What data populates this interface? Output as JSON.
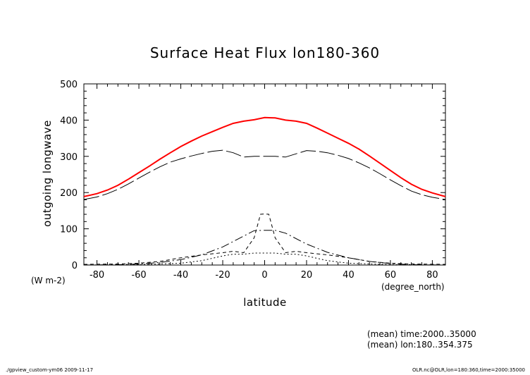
{
  "chart_data": {
    "type": "line",
    "title": "Surface Heat Flux lon180-360",
    "xlabel": "latitude",
    "ylabel": "outgoing longwave",
    "yunits": "(W m-2)",
    "xunits": "(degree_north)",
    "xlim": [
      -86.25,
      86.25
    ],
    "ylim": [
      0,
      500
    ],
    "xticks": [
      -80,
      -60,
      -40,
      -20,
      0,
      20,
      40,
      60,
      80
    ],
    "yticks": [
      0,
      100,
      200,
      300,
      400,
      500
    ],
    "grid": false,
    "series": [
      {
        "style": "solid",
        "color": "#ff0000",
        "x": [
          -86.25,
          -80,
          -75,
          -70,
          -65,
          -60,
          -55,
          -50,
          -45,
          -40,
          -35,
          -30,
          -25,
          -20,
          -15,
          -10,
          -5,
          0,
          5,
          10,
          15,
          20,
          25,
          30,
          35,
          40,
          45,
          50,
          55,
          60,
          65,
          70,
          75,
          80,
          86.25
        ],
        "y": [
          189,
          197,
          207,
          220,
          237,
          255,
          273,
          292,
          310,
          327,
          342,
          356,
          368,
          380,
          391,
          397,
          401,
          407,
          406,
          400,
          397,
          391,
          378,
          364,
          350,
          336,
          320,
          301,
          281,
          261,
          241,
          223,
          209,
          199,
          189
        ]
      },
      {
        "style": "long-dash",
        "color": "#000000",
        "x": [
          -86.25,
          -80,
          -75,
          -70,
          -65,
          -60,
          -55,
          -50,
          -45,
          -40,
          -35,
          -30,
          -25,
          -20,
          -15,
          -10,
          -5,
          0,
          5,
          10,
          15,
          20,
          25,
          30,
          35,
          40,
          45,
          50,
          55,
          60,
          65,
          70,
          75,
          80,
          86.25
        ],
        "y": [
          181,
          188,
          197,
          209,
          224,
          240,
          256,
          271,
          284,
          293,
          301,
          308,
          314,
          317,
          310,
          298,
          300,
          300,
          300,
          298,
          307,
          316,
          314,
          310,
          303,
          294,
          282,
          268,
          252,
          235,
          219,
          204,
          194,
          187,
          181
        ]
      },
      {
        "style": "short-dash",
        "color": "#000000",
        "x": [
          -86.25,
          -70,
          -60,
          -50,
          -40,
          -30,
          -20,
          -15,
          -10,
          -5,
          -2,
          0,
          2,
          5,
          10,
          15,
          20,
          30,
          40,
          50,
          60,
          70,
          86.25
        ],
        "y": [
          2,
          3,
          5,
          10,
          20,
          28,
          34,
          38,
          34,
          75,
          140,
          141,
          140,
          75,
          34,
          38,
          34,
          28,
          20,
          10,
          5,
          3,
          2
        ]
      },
      {
        "style": "dash-dot",
        "color": "#000000",
        "x": [
          -86.25,
          -70,
          -60,
          -50,
          -40,
          -30,
          -20,
          -10,
          -5,
          0,
          5,
          10,
          20,
          30,
          40,
          50,
          60,
          70,
          86.25
        ],
        "y": [
          0,
          1,
          3,
          7,
          15,
          28,
          50,
          80,
          95,
          96,
          96,
          88,
          58,
          35,
          20,
          10,
          4,
          1,
          0
        ]
      },
      {
        "style": "dotted",
        "color": "#000000",
        "x": [
          -86.25,
          -60,
          -40,
          -30,
          -20,
          -15,
          -10,
          -5,
          0,
          5,
          10,
          15,
          20,
          30,
          40,
          60,
          86.25
        ],
        "y": [
          0,
          1,
          5,
          12,
          25,
          30,
          30,
          33,
          33,
          33,
          30,
          30,
          25,
          12,
          5,
          1,
          0
        ]
      }
    ]
  },
  "annotations": {
    "mean_time": "(mean) time:2000..35000",
    "mean_lon": "(mean) lon:180..354.375",
    "footer_left": "./gpview_custom-ym06   2009-11-17",
    "footer_right": "OLR.nc@OLR,lon=180:360,time=2000:35000"
  }
}
